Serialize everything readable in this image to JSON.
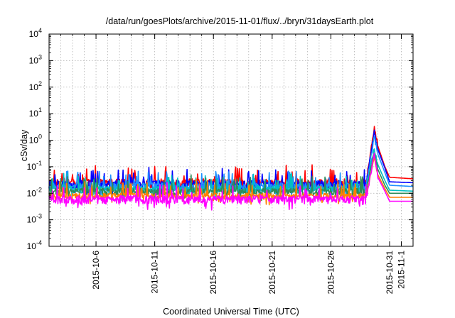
{
  "chart_data": {
    "type": "line",
    "title": "/data/run/goesPlots/archive/2015-11-01/flux/../bryn/31daysEarth.plot",
    "xlabel": "Coordinated Universal Time (UTC)",
    "ylabel": "cSv/day",
    "yscale": "log",
    "ylim": [
      0.0001,
      10000
    ],
    "xlim": [
      "2015-10-02",
      "2015-11-02"
    ],
    "grid": true,
    "legend": "none",
    "x_ticks": [
      "2015-10-6",
      "2015-10-11",
      "2015-10-16",
      "2015-10-21",
      "2015-10-26",
      "2015-10-31",
      "2015-11-1"
    ],
    "y_ticks": [
      {
        "value": 0.0001,
        "base": "10",
        "exp": "-4"
      },
      {
        "value": 0.001,
        "base": "10",
        "exp": "-3"
      },
      {
        "value": 0.01,
        "base": "10",
        "exp": "-2"
      },
      {
        "value": 0.1,
        "base": "10",
        "exp": "-1"
      },
      {
        "value": 1,
        "base": "10",
        "exp": "0"
      },
      {
        "value": 10,
        "base": "10",
        "exp": "1"
      },
      {
        "value": 100,
        "base": "10",
        "exp": "2"
      },
      {
        "value": 1000,
        "base": "10",
        "exp": "3"
      },
      {
        "value": 10000,
        "base": "10",
        "exp": "4"
      }
    ],
    "series": [
      {
        "color": "#ff0000",
        "baseline": 0.025,
        "noise": 0.8,
        "points": [
          [
            "2015-10-29",
            0.025
          ],
          [
            "2015-10-29.7",
            3.2
          ],
          [
            "2015-10-30",
            0.6
          ],
          [
            "2015-10-30.6",
            0.1
          ],
          [
            "2015-10-31",
            0.04
          ],
          [
            "2015-11-02",
            0.035
          ]
        ]
      },
      {
        "color": "#0000ff",
        "baseline": 0.022,
        "noise": 0.75,
        "points": [
          [
            "2015-10-29",
            0.022
          ],
          [
            "2015-10-29.7",
            2.0
          ],
          [
            "2015-10-30",
            0.45
          ],
          [
            "2015-10-30.6",
            0.09
          ],
          [
            "2015-10-31",
            0.027
          ],
          [
            "2015-11-02",
            0.025
          ]
        ]
      },
      {
        "color": "#1e90ff",
        "baseline": 0.018,
        "noise": 0.7,
        "points": [
          [
            "2015-10-29",
            0.018
          ],
          [
            "2015-10-29.7",
            1.4
          ],
          [
            "2015-10-30",
            0.3
          ],
          [
            "2015-10-30.6",
            0.06
          ],
          [
            "2015-10-31",
            0.02
          ],
          [
            "2015-11-02",
            0.018
          ]
        ]
      },
      {
        "color": "#00c0c0",
        "baseline": 0.014,
        "noise": 0.6,
        "points": [
          [
            "2015-10-29",
            0.014
          ],
          [
            "2015-10-29.7",
            0.5
          ],
          [
            "2015-10-30",
            0.12
          ],
          [
            "2015-10-30.6",
            0.03
          ],
          [
            "2015-10-31",
            0.013
          ],
          [
            "2015-11-02",
            0.012
          ]
        ]
      },
      {
        "color": "#2e8b57",
        "baseline": 0.012,
        "noise": 0.55,
        "points": [
          [
            "2015-10-29",
            0.012
          ],
          [
            "2015-10-29.7",
            0.35
          ],
          [
            "2015-10-30",
            0.08
          ],
          [
            "2015-10-30.6",
            0.02
          ],
          [
            "2015-10-31",
            0.01
          ],
          [
            "2015-11-02",
            0.01
          ]
        ]
      },
      {
        "color": "#ff7f00",
        "baseline": 0.008,
        "noise": 0.5,
        "points": [
          [
            "2015-10-29",
            0.008
          ],
          [
            "2015-10-29.7",
            0.25
          ],
          [
            "2015-10-30",
            0.05
          ],
          [
            "2015-10-30.6",
            0.015
          ],
          [
            "2015-10-31",
            0.007
          ],
          [
            "2015-11-02",
            0.007
          ]
        ]
      },
      {
        "color": "#ff00ff",
        "baseline": 0.006,
        "noise": 0.7,
        "points": [
          [
            "2015-10-29",
            0.006
          ],
          [
            "2015-10-29.7",
            0.3
          ],
          [
            "2015-10-30",
            0.04
          ],
          [
            "2015-10-30.6",
            0.012
          ],
          [
            "2015-10-31",
            0.005
          ],
          [
            "2015-11-02",
            0.005
          ]
        ]
      }
    ]
  }
}
